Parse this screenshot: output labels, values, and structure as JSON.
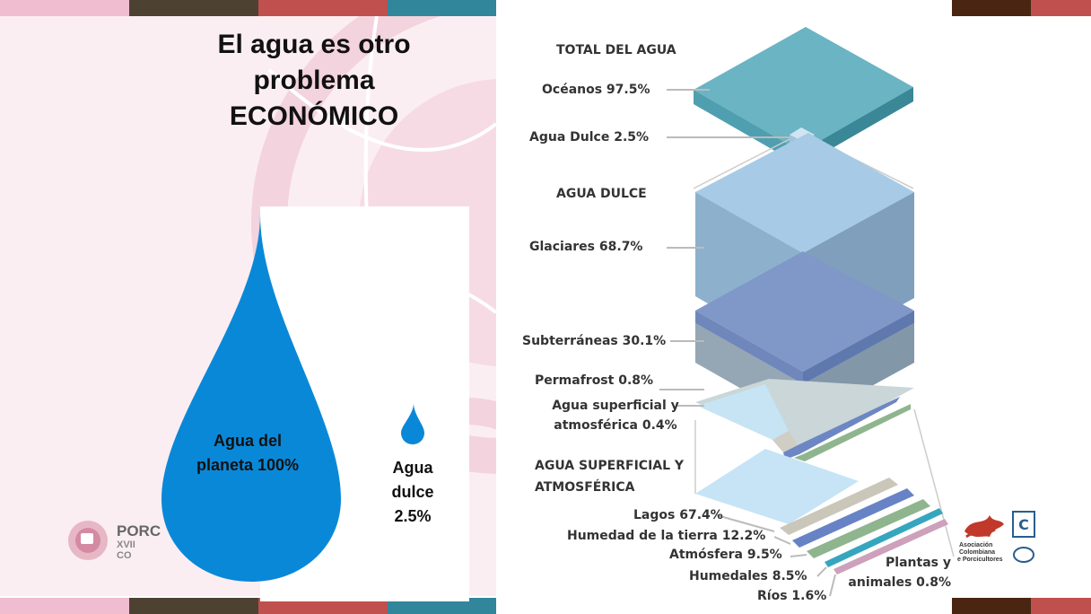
{
  "slide": {
    "title": "El agua es otro problema ECONÓMICO",
    "drops": {
      "planet_label": "Agua del planeta 100%",
      "fresh_label": "Agua dulce 2.5%"
    }
  },
  "diagram": {
    "total_heading": "TOTAL DEL AGUA",
    "oceans": "Océanos 97.5%",
    "fresh": "Agua Dulce 2.5%",
    "fresh_heading": "AGUA DULCE",
    "glaciers": "Glaciares 68.7%",
    "underground": "Subterráneas 30.1%",
    "permafrost": "Permafrost 0.8%",
    "surface": "Agua superficial y atmosférica 0.4%",
    "surface_heading": "AGUA SUPERFICIAL Y ATMOSFÉRICA",
    "lakes": "Lagos 67.4%",
    "soil": "Humedad de la tierra 12.2%",
    "atmosphere": "Atmósfera 9.5%",
    "wetlands": "Humedales 8.5%",
    "rivers": "Ríos 1.6%",
    "living": "Plantas y animales 0.8%"
  },
  "logos": {
    "left_text_1": "PORC",
    "left_text_2": "XVII CO",
    "right_text_1": "Asociación",
    "right_text_2": "Colombiana",
    "right_text_3": "e Porcicultores"
  },
  "colors": {
    "pink": "#f0bcd0",
    "olive": "#4d4232",
    "red": "#c0504d",
    "teal": "#31869b",
    "brown": "#4a2511",
    "drop_blue": "#0a88d8"
  }
}
